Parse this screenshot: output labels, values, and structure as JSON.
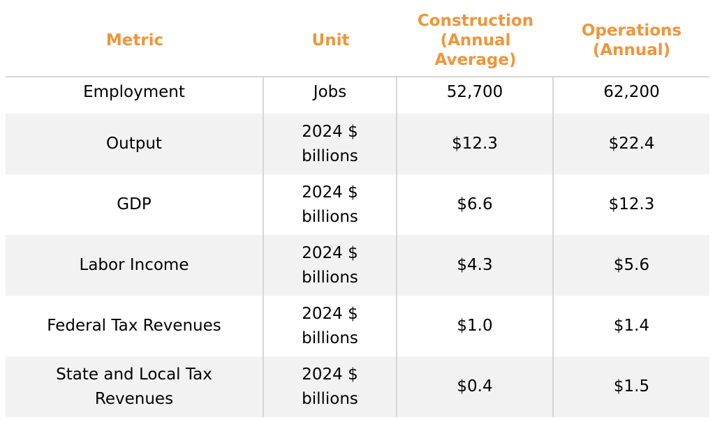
{
  "table": {
    "headers": [
      "Metric",
      "Unit",
      "Construction\n(Annual\nAverage)",
      "Operations\n(Annual)"
    ],
    "rows": [
      [
        "Employment",
        "Jobs",
        "52,700",
        "62,200"
      ],
      [
        "Output",
        "2024 $\nbillions",
        "$12.3",
        "$22.4"
      ],
      [
        "GDP",
        "2024 $\nbillions",
        "$6.6",
        "$12.3"
      ],
      [
        "Labor Income",
        "2024 $\nbillions",
        "$4.3",
        "$5.6"
      ],
      [
        "Federal Tax Revenues",
        "2024 $\nbillions",
        "$1.0",
        "$1.4"
      ],
      [
        "State and Local Tax\nRevenues",
        "2024 $\nbillions",
        "$0.4",
        "$1.5"
      ]
    ]
  },
  "colors": {
    "header_text": "#f0953a",
    "alt_row_bg": "#f2f2f2",
    "divider": "#d6d6d6"
  }
}
